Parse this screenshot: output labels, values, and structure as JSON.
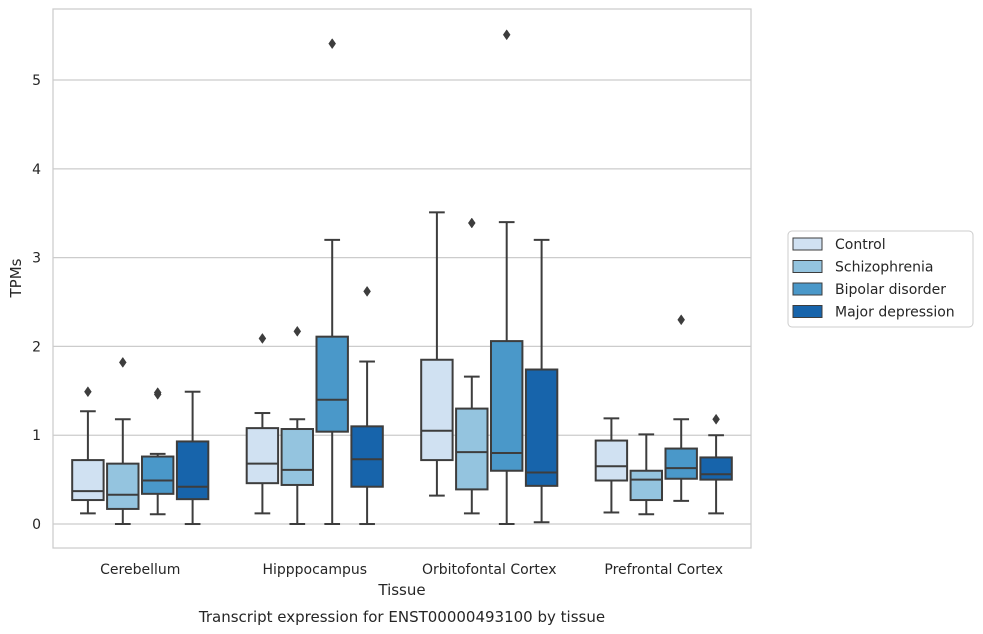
{
  "caption": "Transcript expression for ENST00000493100 by tissue",
  "chart_data": {
    "type": "box",
    "title": "",
    "xlabel": "Tissue",
    "ylabel": "TPMs",
    "ylim": [
      -0.27,
      5.8
    ],
    "yticks": [
      0,
      1,
      2,
      3,
      4,
      5
    ],
    "grid": "horizontal",
    "legend_position": "right",
    "categories": [
      "Cerebellum",
      "Hipppocampus",
      "Orbitofontal Cortex",
      "Prefrontal Cortex"
    ],
    "series": [
      {
        "name": "Control",
        "color": "#d0e1f2",
        "boxes": [
          {
            "whisker_low": 0.12,
            "q1": 0.27,
            "median": 0.37,
            "q3": 0.72,
            "whisker_high": 1.27,
            "outliers": [
              1.49
            ]
          },
          {
            "whisker_low": 0.12,
            "q1": 0.46,
            "median": 0.68,
            "q3": 1.08,
            "whisker_high": 1.25,
            "outliers": [
              2.09
            ]
          },
          {
            "whisker_low": 0.32,
            "q1": 0.72,
            "median": 1.05,
            "q3": 1.85,
            "whisker_high": 3.51,
            "outliers": []
          },
          {
            "whisker_low": 0.13,
            "q1": 0.49,
            "median": 0.65,
            "q3": 0.94,
            "whisker_high": 1.19,
            "outliers": []
          }
        ]
      },
      {
        "name": "Schizophrenia",
        "color": "#94c4df",
        "boxes": [
          {
            "whisker_low": 0.0,
            "q1": 0.17,
            "median": 0.33,
            "q3": 0.68,
            "whisker_high": 1.18,
            "outliers": [
              1.82
            ]
          },
          {
            "whisker_low": 0.0,
            "q1": 0.44,
            "median": 0.61,
            "q3": 1.07,
            "whisker_high": 1.18,
            "outliers": [
              2.17
            ]
          },
          {
            "whisker_low": 0.12,
            "q1": 0.39,
            "median": 0.81,
            "q3": 1.3,
            "whisker_high": 1.66,
            "outliers": [
              3.39
            ]
          },
          {
            "whisker_low": 0.11,
            "q1": 0.27,
            "median": 0.5,
            "q3": 0.6,
            "whisker_high": 1.01,
            "outliers": []
          }
        ]
      },
      {
        "name": "Bipolar disorder",
        "color": "#4a98c9",
        "boxes": [
          {
            "whisker_low": 0.11,
            "q1": 0.34,
            "median": 0.49,
            "q3": 0.76,
            "whisker_high": 0.79,
            "outliers": [
              1.46,
              1.48
            ]
          },
          {
            "whisker_low": 0.0,
            "q1": 1.04,
            "median": 1.4,
            "q3": 2.11,
            "whisker_high": 3.2,
            "outliers": [
              5.41
            ]
          },
          {
            "whisker_low": 0.0,
            "q1": 0.6,
            "median": 0.8,
            "q3": 2.06,
            "whisker_high": 3.4,
            "outliers": [
              5.51
            ]
          },
          {
            "whisker_low": 0.26,
            "q1": 0.51,
            "median": 0.63,
            "q3": 0.85,
            "whisker_high": 1.18,
            "outliers": [
              2.3
            ]
          }
        ]
      },
      {
        "name": "Major depression",
        "color": "#1764ab",
        "boxes": [
          {
            "whisker_low": 0.0,
            "q1": 0.28,
            "median": 0.42,
            "q3": 0.93,
            "whisker_high": 1.49,
            "outliers": []
          },
          {
            "whisker_low": 0.0,
            "q1": 0.42,
            "median": 0.73,
            "q3": 1.1,
            "whisker_high": 1.83,
            "outliers": [
              2.62
            ]
          },
          {
            "whisker_low": 0.02,
            "q1": 0.43,
            "median": 0.58,
            "q3": 1.74,
            "whisker_high": 3.2,
            "outliers": []
          },
          {
            "whisker_low": 0.12,
            "q1": 0.5,
            "median": 0.56,
            "q3": 0.75,
            "whisker_high": 1.0,
            "outliers": [
              1.18
            ]
          }
        ]
      }
    ]
  }
}
